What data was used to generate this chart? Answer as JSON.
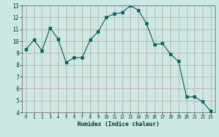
{
  "x": [
    0,
    1,
    2,
    3,
    4,
    5,
    6,
    7,
    8,
    9,
    10,
    11,
    12,
    13,
    14,
    15,
    16,
    17,
    18,
    19,
    20,
    21,
    22,
    23
  ],
  "y": [
    9.3,
    10.1,
    9.2,
    11.1,
    10.2,
    8.2,
    8.6,
    8.6,
    10.1,
    10.8,
    12.0,
    12.3,
    12.4,
    13.0,
    12.6,
    11.5,
    9.7,
    9.8,
    8.9,
    8.3,
    5.3,
    5.3,
    4.9,
    4.1
  ],
  "xlabel": "Humidex (Indice chaleur)",
  "ylim": [
    4,
    13
  ],
  "xlim": [
    -0.5,
    23.5
  ],
  "bg_color": "#cce8e4",
  "grid_color": "#cc9999",
  "line_color": "#006666",
  "marker_color": "#006666",
  "x_ticks": [
    0,
    1,
    2,
    3,
    4,
    5,
    6,
    7,
    8,
    9,
    10,
    11,
    12,
    13,
    14,
    15,
    16,
    17,
    18,
    19,
    20,
    21,
    22,
    23
  ],
  "x_tick_labels": [
    "0",
    "1",
    "2",
    "3",
    "4",
    "5",
    "6",
    "7",
    "8",
    "9",
    "10",
    "11",
    "12",
    "13",
    "14",
    "15",
    "16",
    "17",
    "18",
    "19",
    "20",
    "21",
    "22",
    "23"
  ],
  "y_ticks": [
    4,
    5,
    6,
    7,
    8,
    9,
    10,
    11,
    12,
    13
  ],
  "y_tick_labels": [
    "4",
    "5",
    "6",
    "7",
    "8",
    "9",
    "10",
    "11",
    "12",
    "13"
  ]
}
